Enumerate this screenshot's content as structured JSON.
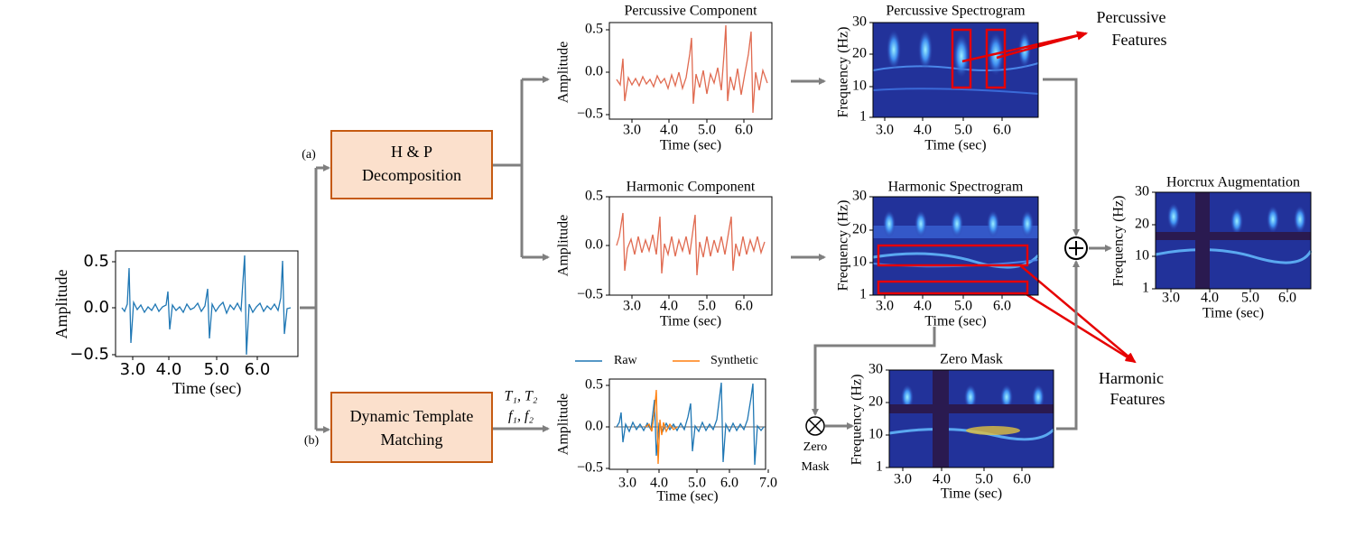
{
  "input_plot": {
    "ylabel": "Amplitude",
    "xlabel": "Time (sec)",
    "yticks": [
      "0.5",
      "0.0",
      "−0.5"
    ],
    "xticks": [
      "3.0",
      "4.0",
      "5.0",
      "6.0"
    ]
  },
  "branch_a": "(a)",
  "branch_b": "(b)",
  "hp_box": {
    "line1": "H & P",
    "line2": "Decomposition"
  },
  "dtm_box": {
    "line1": "Dynamic Template",
    "line2": "Matching"
  },
  "template_params": {
    "line1": "T₁, T₂",
    "line2": "f₁, f₂"
  },
  "percussive_component": {
    "title": "Percussive Component",
    "ylabel": "Amplitude",
    "xlabel": "Time (sec)",
    "yticks": [
      "0.5",
      "0.0",
      "−0.5"
    ],
    "xticks": [
      "3.0",
      "4.0",
      "5.0",
      "6.0"
    ]
  },
  "harmonic_component": {
    "title": "Harmonic Component",
    "ylabel": "Amplitude",
    "xlabel": "Time (sec)",
    "yticks": [
      "0.5",
      "0.0",
      "−0.5"
    ],
    "xticks": [
      "3.0",
      "4.0",
      "5.0",
      "6.0"
    ]
  },
  "matching_plot": {
    "legend": [
      "Raw",
      "Synthetic"
    ],
    "ylabel": "Amplitude",
    "xlabel": "Time (sec)",
    "yticks": [
      "0.5",
      "0.0",
      "−0.5"
    ],
    "xticks": [
      "3.0",
      "4.0",
      "5.0",
      "6.0",
      "7.0"
    ]
  },
  "percussive_spectrogram": {
    "title": "Percussive Spectrogram",
    "ylabel": "Frequency (Hz)",
    "xlabel": "Time (sec)",
    "yticks": [
      "30",
      "20",
      "10",
      "1"
    ],
    "xticks": [
      "3.0",
      "4.0",
      "5.0",
      "6.0"
    ]
  },
  "harmonic_spectrogram": {
    "title": "Harmonic Spectrogram",
    "ylabel": "Frequency (Hz)",
    "xlabel": "Time (sec)",
    "yticks": [
      "30",
      "20",
      "10",
      "1"
    ],
    "xticks": [
      "3.0",
      "4.0",
      "5.0",
      "6.0"
    ]
  },
  "zero_mask_spectrogram": {
    "title": "Zero Mask",
    "ylabel": "Frequency (Hz)",
    "xlabel": "Time (sec)",
    "yticks": [
      "30",
      "20",
      "10",
      "1"
    ],
    "xticks": [
      "3.0",
      "4.0",
      "5.0",
      "6.0"
    ]
  },
  "horcrux_spectrogram": {
    "title": "Horcrux Augmentation",
    "ylabel": "Frequency (Hz)",
    "xlabel": "Time (sec)",
    "yticks": [
      "30",
      "20",
      "10",
      "1"
    ],
    "xticks": [
      "3.0",
      "4.0",
      "5.0",
      "6.0"
    ]
  },
  "zero_mask_op": {
    "line1": "Zero",
    "line2": "Mask"
  },
  "percussive_features": {
    "line1": "Percussive",
    "line2": "Features"
  },
  "harmonic_features": {
    "line1": "Harmonic",
    "line2": "Features"
  }
}
